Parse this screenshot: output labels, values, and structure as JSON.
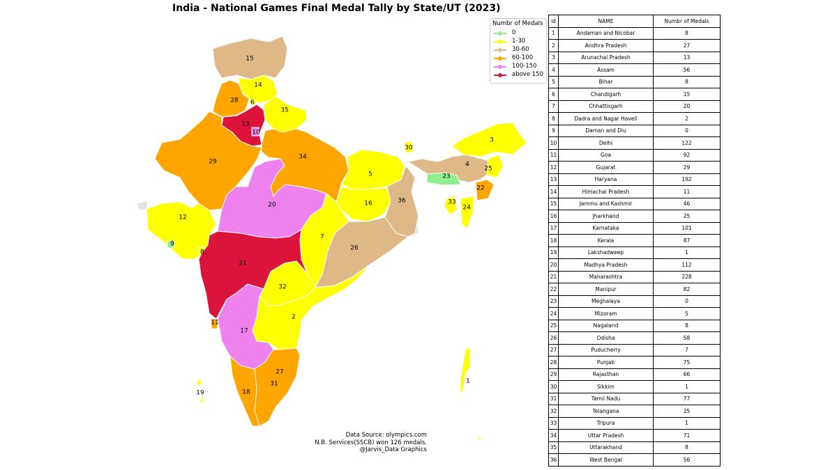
{
  "title": "India - National Games Final Medal Tally by State/UT (2023)",
  "legend": {
    "title": "Numbr of Medals",
    "items": [
      {
        "label": "0",
        "color": "#90ee90"
      },
      {
        "label": "1-30",
        "color": "#ffff00"
      },
      {
        "label": "30-60",
        "color": "#deb887"
      },
      {
        "label": "60-100",
        "color": "#ffa500"
      },
      {
        "label": "100-150",
        "color": "#ee82ee"
      },
      {
        "label": "above 150",
        "color": "#dc143c"
      }
    ]
  },
  "credits": [
    "Data Source: olympics.com",
    "N.B. Services(SSCB) won 126 medals.",
    "@Jarvis_Data Graphics"
  ],
  "table": {
    "headers": [
      "id",
      "NAME",
      "Numbr of Medals"
    ],
    "rows": [
      {
        "id": "1",
        "name": "Andaman and Nicobar",
        "medals": "8"
      },
      {
        "id": "2",
        "name": "Andhra Pradesh",
        "medals": "27"
      },
      {
        "id": "3",
        "name": "Arunachal Pradesh",
        "medals": "13"
      },
      {
        "id": "4",
        "name": "Assam",
        "medals": "56"
      },
      {
        "id": "5",
        "name": "Bihar",
        "medals": "8"
      },
      {
        "id": "6",
        "name": "Chandigarh",
        "medals": "15"
      },
      {
        "id": "7",
        "name": "Chhattisgarh",
        "medals": "20"
      },
      {
        "id": "8",
        "name": "Dadra and Nagar Haveli",
        "medals": "2"
      },
      {
        "id": "9",
        "name": "Daman and Diu",
        "medals": "0"
      },
      {
        "id": "10",
        "name": "Delhi",
        "medals": "122"
      },
      {
        "id": "11",
        "name": "Goa",
        "medals": "92"
      },
      {
        "id": "12",
        "name": "Gujarat",
        "medals": "29"
      },
      {
        "id": "13",
        "name": "Haryana",
        "medals": "192"
      },
      {
        "id": "14",
        "name": "Himachal Pradesh",
        "medals": "11"
      },
      {
        "id": "15",
        "name": "Jammu and Kashmir",
        "medals": "46"
      },
      {
        "id": "16",
        "name": "Jharkhand",
        "medals": "25"
      },
      {
        "id": "17",
        "name": "Karnataka",
        "medals": "101"
      },
      {
        "id": "18",
        "name": "Kerala",
        "medals": "87"
      },
      {
        "id": "19",
        "name": "Lakshadweep",
        "medals": "1"
      },
      {
        "id": "20",
        "name": "Madhya Pradesh",
        "medals": "112"
      },
      {
        "id": "21",
        "name": "Maharashtra",
        "medals": "228"
      },
      {
        "id": "22",
        "name": "Manipur",
        "medals": "82"
      },
      {
        "id": "23",
        "name": "Meghalaya",
        "medals": "0"
      },
      {
        "id": "24",
        "name": "Mizoram",
        "medals": "5"
      },
      {
        "id": "25",
        "name": "Nagaland",
        "medals": "8"
      },
      {
        "id": "26",
        "name": "Odisha",
        "medals": "58"
      },
      {
        "id": "27",
        "name": "Puducherry",
        "medals": "7"
      },
      {
        "id": "28",
        "name": "Punjab",
        "medals": "75"
      },
      {
        "id": "29",
        "name": "Rajasthan",
        "medals": "66"
      },
      {
        "id": "30",
        "name": "Sikkim",
        "medals": "1"
      },
      {
        "id": "31",
        "name": "Tamil Nadu",
        "medals": "77"
      },
      {
        "id": "32",
        "name": "Telangana",
        "medals": "25"
      },
      {
        "id": "33",
        "name": "Tripura",
        "medals": "1"
      },
      {
        "id": "34",
        "name": "Uttar Pradesh",
        "medals": "71"
      },
      {
        "id": "35",
        "name": "Uttarakhand",
        "medals": "8"
      },
      {
        "id": "36",
        "name": "West Bengal",
        "medals": "56"
      }
    ]
  },
  "map": {
    "regions": [
      {
        "id": "15",
        "name": "Jammu and Kashmir",
        "color": "#deb887"
      },
      {
        "id": "14",
        "name": "Himachal Pradesh",
        "color": "#ffff00"
      },
      {
        "id": "28",
        "name": "Punjab",
        "color": "#ffa500"
      },
      {
        "id": "6",
        "name": "Chandigarh",
        "color": "#ffff00"
      },
      {
        "id": "35",
        "name": "Uttarakhand",
        "color": "#ffff00"
      },
      {
        "id": "13",
        "name": "Haryana",
        "color": "#dc143c"
      },
      {
        "id": "10",
        "name": "Delhi",
        "color": "#ee82ee"
      },
      {
        "id": "29",
        "name": "Rajasthan",
        "color": "#ffa500"
      },
      {
        "id": "34",
        "name": "Uttar Pradesh",
        "color": "#ffa500"
      },
      {
        "id": "5",
        "name": "Bihar",
        "color": "#ffff00"
      },
      {
        "id": "30",
        "name": "Sikkim",
        "color": "#ffff00"
      },
      {
        "id": "3",
        "name": "Arunachal Pradesh",
        "color": "#ffff00"
      },
      {
        "id": "4",
        "name": "Assam",
        "color": "#deb887"
      },
      {
        "id": "25",
        "name": "Nagaland",
        "color": "#ffff00"
      },
      {
        "id": "23",
        "name": "Meghalaya",
        "color": "#90ee90"
      },
      {
        "id": "22",
        "name": "Manipur",
        "color": "#ffa500"
      },
      {
        "id": "33",
        "name": "Tripura",
        "color": "#ffff00"
      },
      {
        "id": "24",
        "name": "Mizoram",
        "color": "#ffff00"
      },
      {
        "id": "12",
        "name": "Gujarat",
        "color": "#ffff00"
      },
      {
        "id": "9",
        "name": "Daman and Diu",
        "color": "#90ee90"
      },
      {
        "id": "8",
        "name": "Dadra and Nagar Haveli",
        "color": "#ffff00"
      },
      {
        "id": "20",
        "name": "Madhya Pradesh",
        "color": "#ee82ee"
      },
      {
        "id": "16",
        "name": "Jharkhand",
        "color": "#ffff00"
      },
      {
        "id": "36",
        "name": "West Bengal",
        "color": "#deb887"
      },
      {
        "id": "7",
        "name": "Chhattisgarh",
        "color": "#ffff00"
      },
      {
        "id": "26",
        "name": "Odisha",
        "color": "#deb887"
      },
      {
        "id": "21",
        "name": "Maharashtra",
        "color": "#dc143c"
      },
      {
        "id": "32",
        "name": "Telangana",
        "color": "#ffff00"
      },
      {
        "id": "2",
        "name": "Andhra Pradesh",
        "color": "#ffff00"
      },
      {
        "id": "11",
        "name": "Goa",
        "color": "#ffa500"
      },
      {
        "id": "17",
        "name": "Karnataka",
        "color": "#ee82ee"
      },
      {
        "id": "27",
        "name": "Puducherry",
        "color": "#ffff00"
      },
      {
        "id": "31",
        "name": "Tamil Nadu",
        "color": "#ffa500"
      },
      {
        "id": "18",
        "name": "Kerala",
        "color": "#ffa500"
      },
      {
        "id": "19",
        "name": "Lakshadweep",
        "color": "#ffff00"
      },
      {
        "id": "1",
        "name": "Andaman and Nicobar",
        "color": "#ffff00"
      }
    ]
  }
}
